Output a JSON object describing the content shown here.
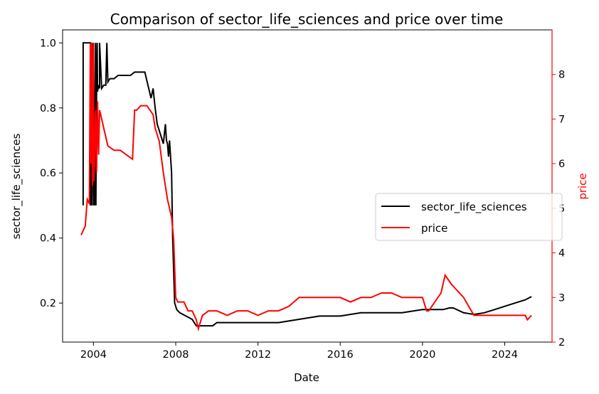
{
  "chart_data": {
    "type": "line",
    "title": "Comparison of sector_life_sciences and price over time",
    "xlabel": "Date",
    "ylabel_left": "sector_life_sciences",
    "ylabel_right": "price",
    "xlim": [
      2002.5,
      2026.3
    ],
    "ylim_left": [
      0.08,
      1.04
    ],
    "ylim_right": [
      2.0,
      9.0
    ],
    "x_ticks": [
      2004,
      2008,
      2012,
      2016,
      2020,
      2024
    ],
    "x_tick_labels": [
      "2004",
      "2008",
      "2012",
      "2016",
      "2020",
      "2024"
    ],
    "y_left_ticks": [
      0.2,
      0.4,
      0.6,
      0.8,
      1.0
    ],
    "y_left_tick_labels": [
      "0.2",
      "0.4",
      "0.6",
      "0.8",
      "1.0"
    ],
    "y_right_ticks": [
      2,
      3,
      4,
      5,
      6,
      7,
      8
    ],
    "y_right_tick_labels": [
      "2",
      "3",
      "4",
      "5",
      "6",
      "7",
      "8"
    ],
    "legend_position": "center-right",
    "grid": false,
    "colors": {
      "left_axis": "#000000",
      "right_axis": "#ff0000"
    },
    "series": [
      {
        "name": "sector_life_sciences",
        "axis": "left",
        "color": "#000000",
        "x": [
          2003.5,
          2003.5,
          2003.85,
          2003.85,
          2003.9,
          2003.92,
          2003.95,
          2004.0,
          2004.0,
          2004.05,
          2004.1,
          2004.12,
          2004.15,
          2004.18,
          2004.2,
          2004.25,
          2004.3,
          2004.3,
          2004.4,
          2004.5,
          2004.6,
          2004.65,
          2004.7,
          2004.8,
          2005.0,
          2005.2,
          2005.5,
          2005.8,
          2006.0,
          2006.2,
          2006.5,
          2006.8,
          2006.9,
          2007.0,
          2007.1,
          2007.2,
          2007.3,
          2007.4,
          2007.5,
          2007.55,
          2007.6,
          2007.65,
          2007.7,
          2007.8,
          2007.85,
          2007.95,
          2008.0,
          2008.05,
          2008.2,
          2008.5,
          2008.8,
          2009.0,
          2009.2,
          2009.6,
          2009.8,
          2010.0,
          2010.5,
          2011.0,
          2012.0,
          2013.0,
          2014.0,
          2015.0,
          2016.0,
          2017.0,
          2018.0,
          2019.0,
          2020.0,
          2020.5,
          2021.0,
          2021.3,
          2021.5,
          2022.0,
          2022.5,
          2023.0,
          2023.5,
          2024.0,
          2024.5,
          2025.0,
          2025.3
        ],
        "y": [
          0.5,
          1.0,
          1.0,
          0.5,
          1.0,
          0.5,
          1.0,
          0.5,
          1.0,
          0.5,
          1.0,
          0.5,
          0.85,
          1.0,
          0.85,
          0.87,
          0.86,
          1.0,
          0.86,
          0.87,
          0.87,
          1.0,
          0.88,
          0.89,
          0.89,
          0.9,
          0.9,
          0.9,
          0.91,
          0.91,
          0.91,
          0.83,
          0.86,
          0.8,
          0.75,
          0.73,
          0.71,
          0.69,
          0.75,
          0.7,
          0.69,
          0.65,
          0.7,
          0.6,
          0.4,
          0.2,
          0.19,
          0.18,
          0.17,
          0.16,
          0.15,
          0.13,
          0.13,
          0.13,
          0.13,
          0.14,
          0.14,
          0.14,
          0.14,
          0.14,
          0.15,
          0.16,
          0.16,
          0.17,
          0.17,
          0.17,
          0.18,
          0.18,
          0.18,
          0.185,
          0.185,
          0.17,
          0.165,
          0.17,
          0.18,
          0.19,
          0.2,
          0.21,
          0.22
        ]
      },
      {
        "name": "price",
        "axis": "right",
        "color": "#ff0000",
        "x": [
          2003.4,
          2003.5,
          2003.6,
          2003.7,
          2003.8,
          2003.85,
          2003.88,
          2003.92,
          2003.95,
          2004.0,
          2004.02,
          2004.05,
          2004.1,
          2004.15,
          2004.2,
          2004.25,
          2004.3,
          2004.4,
          2004.5,
          2004.7,
          2005.0,
          2005.3,
          2005.6,
          2005.9,
          2006.0,
          2006.1,
          2006.3,
          2006.6,
          2006.9,
          2007.0,
          2007.2,
          2007.4,
          2007.6,
          2007.8,
          2007.9,
          2008.0,
          2008.1,
          2008.4,
          2008.6,
          2008.8,
          2009.0,
          2009.1,
          2009.3,
          2009.6,
          2010.0,
          2010.5,
          2011.0,
          2011.5,
          2012.0,
          2012.5,
          2013.0,
          2013.5,
          2014.0,
          2014.5,
          2015.0,
          2015.5,
          2016.0,
          2016.5,
          2017.0,
          2017.5,
          2018.0,
          2018.5,
          2019.0,
          2019.5,
          2020.0,
          2020.2,
          2020.3,
          2020.6,
          2020.9,
          2021.1,
          2021.4,
          2021.8,
          2022.0,
          2022.5,
          2023.0,
          2023.5,
          2024.0,
          2024.5,
          2025.0,
          2025.1,
          2025.3
        ],
        "y": [
          4.4,
          4.5,
          4.6,
          5.2,
          5.1,
          8.7,
          6.0,
          8.7,
          5.5,
          8.7,
          5.6,
          6.0,
          7.2,
          5.8,
          7.4,
          6.2,
          7.2,
          7.0,
          6.8,
          6.4,
          6.3,
          6.3,
          6.2,
          6.1,
          7.2,
          7.2,
          7.3,
          7.3,
          7.1,
          6.8,
          6.5,
          5.8,
          5.2,
          4.8,
          4.3,
          3.0,
          2.9,
          2.9,
          2.7,
          2.7,
          2.5,
          2.3,
          2.6,
          2.7,
          2.7,
          2.6,
          2.7,
          2.7,
          2.6,
          2.7,
          2.7,
          2.8,
          3.0,
          3.0,
          3.0,
          3.0,
          3.0,
          2.9,
          3.0,
          3.0,
          3.1,
          3.1,
          3.0,
          3.0,
          3.0,
          2.7,
          2.7,
          2.9,
          3.1,
          3.5,
          3.3,
          3.1,
          3.0,
          2.6,
          2.6,
          2.6,
          2.6,
          2.6,
          2.6,
          2.5,
          2.6
        ]
      }
    ]
  }
}
